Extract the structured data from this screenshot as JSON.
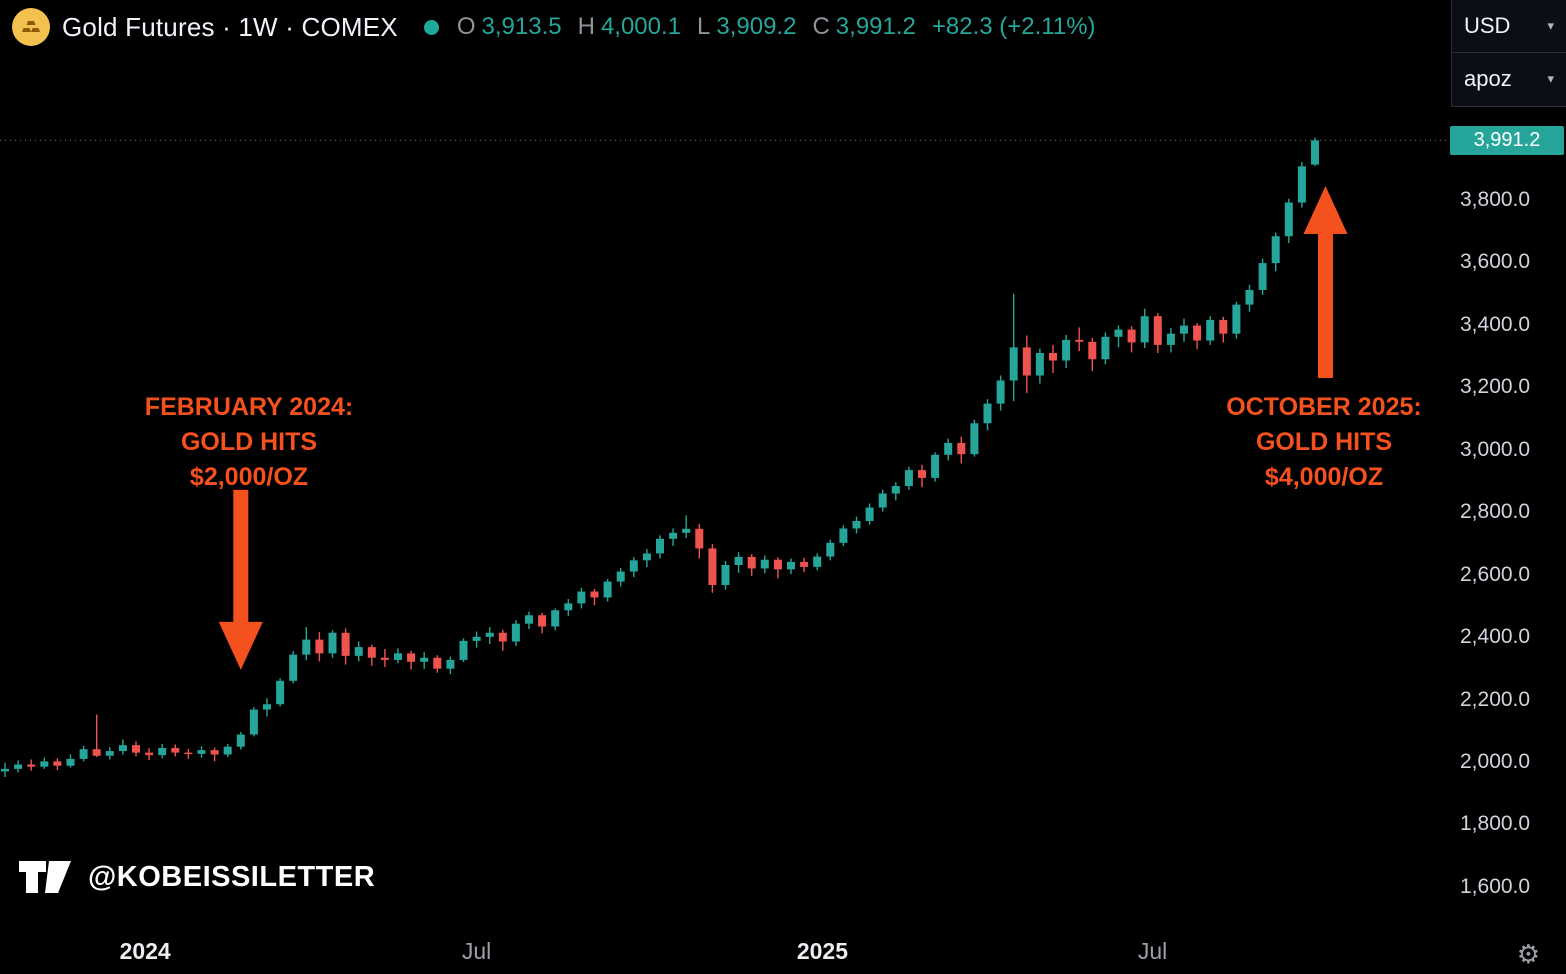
{
  "header": {
    "symbol_title": "Gold Futures · 1W · COMEX",
    "ohlc": {
      "o_label": "O",
      "o": "3,913.5",
      "h_label": "H",
      "h": "4,000.1",
      "l_label": "L",
      "l": "3,909.2",
      "c_label": "C",
      "c": "3,991.2",
      "change": "+82.3 (+2.11%)"
    }
  },
  "currency_panel": {
    "currency": "USD",
    "unit": "apoz"
  },
  "price_label": "3,991.2",
  "watermark": {
    "handle": "@KOBEISSILETTER"
  },
  "annotations": [
    {
      "lines": [
        "FEBRUARY 2024:",
        "GOLD HITS",
        "$2,000/OZ"
      ],
      "direction": "down",
      "target_week": 18,
      "target_price": 2295
    },
    {
      "lines": [
        "OCTOBER 2025:",
        "GOLD HITS",
        "$4,000/OZ"
      ],
      "direction": "up",
      "target_week": 100.8,
      "target_price": 3845
    }
  ],
  "colors": {
    "up": "#26a69a",
    "down": "#ef5350",
    "annotation_accent": "#f4511e",
    "dotted_line": "#6a6e79",
    "axis_text": "#d1d4dc"
  },
  "chart_data": {
    "type": "candlestick",
    "title": "Gold Futures weekly candlestick chart (COMEX), Oct 2023 - Oct 2025",
    "interval": "1W",
    "grid": false,
    "legend_position": "none",
    "ylim": [
      1600,
      4000
    ],
    "last_price": 3991.2,
    "y_ticks": [
      {
        "v": 3800,
        "label": "3,800.0"
      },
      {
        "v": 3600,
        "label": "3,600.0"
      },
      {
        "v": 3400,
        "label": "3,400.0"
      },
      {
        "v": 3200,
        "label": "3,200.0"
      },
      {
        "v": 3000,
        "label": "3,000.0"
      },
      {
        "v": 2800,
        "label": "2,800.0"
      },
      {
        "v": 2600,
        "label": "2,600.0"
      },
      {
        "v": 2400,
        "label": "2,400.0"
      },
      {
        "v": 2200,
        "label": "2,200.0"
      },
      {
        "v": 2000,
        "label": "2,000.0"
      },
      {
        "v": 1800,
        "label": "1,800.0"
      },
      {
        "v": 1600,
        "label": "1,600.0"
      }
    ],
    "x_ticks": [
      {
        "label": "2024",
        "week": 10.7,
        "emphasis": true
      },
      {
        "label": "Jul",
        "week": 36.0,
        "emphasis": false
      },
      {
        "label": "2025",
        "week": 62.4,
        "emphasis": true
      },
      {
        "label": "Jul",
        "week": 87.6,
        "emphasis": false
      }
    ],
    "candles": [
      [
        1970,
        1998,
        1952,
        1978
      ],
      [
        1978,
        2005,
        1966,
        1992
      ],
      [
        1992,
        2008,
        1972,
        1985
      ],
      [
        1985,
        2014,
        1978,
        2002
      ],
      [
        2002,
        2012,
        1974,
        1988
      ],
      [
        1988,
        2024,
        1982,
        2010
      ],
      [
        2010,
        2052,
        2002,
        2041
      ],
      [
        2041,
        2152,
        2016,
        2020
      ],
      [
        2020,
        2048,
        2008,
        2035
      ],
      [
        2035,
        2072,
        2024,
        2054
      ],
      [
        2054,
        2066,
        2018,
        2030
      ],
      [
        2030,
        2044,
        2006,
        2022
      ],
      [
        2022,
        2058,
        2012,
        2045
      ],
      [
        2045,
        2056,
        2018,
        2030
      ],
      [
        2030,
        2042,
        2010,
        2026
      ],
      [
        2026,
        2050,
        2014,
        2038
      ],
      [
        2038,
        2046,
        2002,
        2024
      ],
      [
        2024,
        2058,
        2016,
        2049
      ],
      [
        2049,
        2096,
        2040,
        2088
      ],
      [
        2088,
        2176,
        2082,
        2168
      ],
      [
        2168,
        2204,
        2146,
        2185
      ],
      [
        2185,
        2268,
        2178,
        2260
      ],
      [
        2260,
        2356,
        2252,
        2344
      ],
      [
        2344,
        2432,
        2326,
        2392
      ],
      [
        2392,
        2416,
        2322,
        2348
      ],
      [
        2348,
        2422,
        2334,
        2414
      ],
      [
        2414,
        2428,
        2312,
        2340
      ],
      [
        2340,
        2386,
        2322,
        2368
      ],
      [
        2368,
        2376,
        2308,
        2334
      ],
      [
        2334,
        2362,
        2304,
        2327
      ],
      [
        2327,
        2364,
        2316,
        2348
      ],
      [
        2348,
        2356,
        2296,
        2321
      ],
      [
        2321,
        2352,
        2298,
        2334
      ],
      [
        2334,
        2342,
        2286,
        2299
      ],
      [
        2299,
        2338,
        2282,
        2327
      ],
      [
        2327,
        2396,
        2320,
        2388
      ],
      [
        2388,
        2418,
        2366,
        2401
      ],
      [
        2401,
        2432,
        2378,
        2414
      ],
      [
        2414,
        2424,
        2356,
        2386
      ],
      [
        2386,
        2454,
        2372,
        2443
      ],
      [
        2443,
        2482,
        2426,
        2470
      ],
      [
        2470,
        2478,
        2412,
        2434
      ],
      [
        2434,
        2492,
        2422,
        2486
      ],
      [
        2486,
        2522,
        2468,
        2508
      ],
      [
        2508,
        2558,
        2492,
        2546
      ],
      [
        2546,
        2554,
        2502,
        2527
      ],
      [
        2527,
        2586,
        2514,
        2578
      ],
      [
        2578,
        2622,
        2562,
        2610
      ],
      [
        2610,
        2656,
        2592,
        2646
      ],
      [
        2646,
        2682,
        2624,
        2668
      ],
      [
        2668,
        2726,
        2652,
        2715
      ],
      [
        2715,
        2748,
        2692,
        2734
      ],
      [
        2734,
        2790,
        2718,
        2747
      ],
      [
        2747,
        2762,
        2652,
        2684
      ],
      [
        2684,
        2698,
        2542,
        2567
      ],
      [
        2567,
        2644,
        2552,
        2631
      ],
      [
        2631,
        2672,
        2606,
        2657
      ],
      [
        2657,
        2666,
        2596,
        2620
      ],
      [
        2620,
        2662,
        2604,
        2648
      ],
      [
        2648,
        2656,
        2588,
        2617
      ],
      [
        2617,
        2652,
        2602,
        2641
      ],
      [
        2641,
        2654,
        2608,
        2625
      ],
      [
        2625,
        2668,
        2614,
        2658
      ],
      [
        2658,
        2712,
        2646,
        2702
      ],
      [
        2702,
        2758,
        2692,
        2748
      ],
      [
        2748,
        2786,
        2732,
        2772
      ],
      [
        2772,
        2828,
        2760,
        2815
      ],
      [
        2815,
        2872,
        2802,
        2860
      ],
      [
        2860,
        2896,
        2838,
        2884
      ],
      [
        2884,
        2946,
        2872,
        2935
      ],
      [
        2935,
        2952,
        2880,
        2910
      ],
      [
        2910,
        2992,
        2898,
        2984
      ],
      [
        2984,
        3036,
        2966,
        3022
      ],
      [
        3022,
        3042,
        2956,
        2986
      ],
      [
        2986,
        3096,
        2978,
        3085
      ],
      [
        3085,
        3162,
        3062,
        3148
      ],
      [
        3148,
        3238,
        3126,
        3222
      ],
      [
        3222,
        3500,
        3156,
        3328
      ],
      [
        3328,
        3366,
        3182,
        3238
      ],
      [
        3238,
        3324,
        3212,
        3310
      ],
      [
        3310,
        3336,
        3246,
        3286
      ],
      [
        3286,
        3368,
        3262,
        3352
      ],
      [
        3352,
        3392,
        3316,
        3346
      ],
      [
        3346,
        3358,
        3252,
        3290
      ],
      [
        3290,
        3376,
        3274,
        3362
      ],
      [
        3362,
        3398,
        3328,
        3385
      ],
      [
        3385,
        3396,
        3312,
        3344
      ],
      [
        3344,
        3452,
        3326,
        3428
      ],
      [
        3428,
        3438,
        3310,
        3336
      ],
      [
        3336,
        3390,
        3312,
        3372
      ],
      [
        3372,
        3420,
        3346,
        3398
      ],
      [
        3398,
        3406,
        3322,
        3350
      ],
      [
        3350,
        3428,
        3336,
        3416
      ],
      [
        3416,
        3426,
        3344,
        3372
      ],
      [
        3372,
        3474,
        3356,
        3465
      ],
      [
        3465,
        3528,
        3442,
        3512
      ],
      [
        3512,
        3612,
        3496,
        3598
      ],
      [
        3598,
        3696,
        3572,
        3684
      ],
      [
        3684,
        3804,
        3662,
        3792
      ],
      [
        3792,
        3922,
        3776,
        3908
      ],
      [
        3913.5,
        4000.1,
        3909.2,
        3991.2
      ]
    ]
  }
}
